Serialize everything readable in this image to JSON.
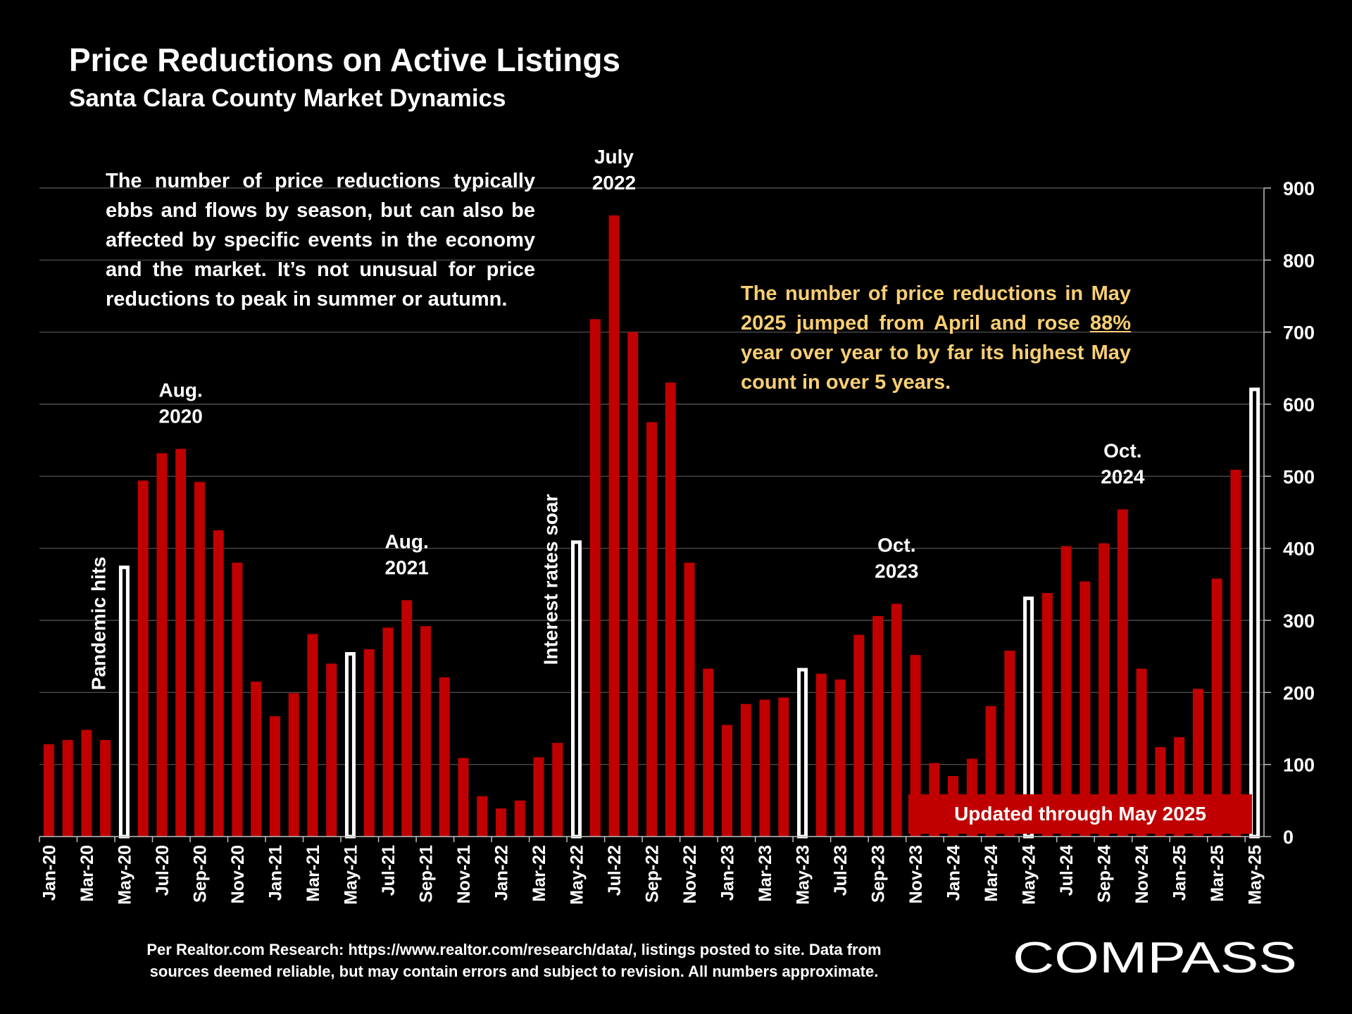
{
  "header": {
    "title": "Price Reductions on Active Listings",
    "subtitle": "Santa Clara County Market Dynamics"
  },
  "notes": {
    "left": "The number of price reductions typically ebbs and flows by season, but can also be affected by specific events in the economy and the market. It’s not unusual for price reductions to peak in summer or autumn.",
    "right_part1": "The number of price reductions in May 2025 jumped from April and rose",
    "right_highlight": "88%",
    "right_part2": "year over year to by far its highest May count in over 5 years."
  },
  "updated_label": "Updated through May 2025",
  "footer": {
    "line1": "Per Realtor.com Research:  https://www.realtor.com/research/data/, listings posted to site. Data from",
    "line2": "sources deemed reliable, but may contain errors and subject to revision. All numbers approximate."
  },
  "logo": {
    "text": "COMPASS"
  },
  "colors": {
    "bar": "#c00000",
    "highlight_bar": "#ffffff",
    "note_text": "#f9cf73",
    "grid": "#595959"
  },
  "chart_data": {
    "type": "bar",
    "title": "Price Reductions on Active Listings",
    "subtitle": "Santa Clara County Market Dynamics",
    "y_axis_position": "right",
    "ylim": [
      0,
      900
    ],
    "yticks": [
      0,
      100,
      200,
      300,
      400,
      500,
      600,
      700,
      800,
      900
    ],
    "grid": true,
    "x_tick_labels": [
      "Jan-20",
      "Mar-20",
      "May-20",
      "Jul-20",
      "Sep-20",
      "Nov-20",
      "Jan-21",
      "Mar-21",
      "May-21",
      "Jul-21",
      "Sep-21",
      "Nov-21",
      "Jan-22",
      "Mar-22",
      "May-22",
      "Jul-22",
      "Sep-22",
      "Nov-22",
      "Jan-23",
      "Mar-23",
      "May-23",
      "Jul-23",
      "Sep-23",
      "Nov-23",
      "Jan-24",
      "Mar-24",
      "May-24",
      "Jul-24",
      "Sep-24",
      "Nov-24",
      "Jan-25",
      "Mar-25",
      "May-25"
    ],
    "categories": [
      "Jan-20",
      "Feb-20",
      "Mar-20",
      "Apr-20",
      "May-20",
      "Jun-20",
      "Jul-20",
      "Aug-20",
      "Sep-20",
      "Oct-20",
      "Nov-20",
      "Dec-20",
      "Jan-21",
      "Feb-21",
      "Mar-21",
      "Apr-21",
      "May-21",
      "Jun-21",
      "Jul-21",
      "Aug-21",
      "Sep-21",
      "Oct-21",
      "Nov-21",
      "Dec-21",
      "Jan-22",
      "Feb-22",
      "Mar-22",
      "Apr-22",
      "May-22",
      "Jun-22",
      "Jul-22",
      "Aug-22",
      "Sep-22",
      "Oct-22",
      "Nov-22",
      "Dec-22",
      "Jan-23",
      "Feb-23",
      "Mar-23",
      "Apr-23",
      "May-23",
      "Jun-23",
      "Jul-23",
      "Aug-23",
      "Sep-23",
      "Oct-23",
      "Nov-23",
      "Dec-23",
      "Jan-24",
      "Feb-24",
      "Mar-24",
      "Apr-24",
      "May-24",
      "Jun-24",
      "Jul-24",
      "Aug-24",
      "Sep-24",
      "Oct-24",
      "Nov-24",
      "Dec-24",
      "Jan-25",
      "Feb-25",
      "Mar-25",
      "Apr-25",
      "May-25"
    ],
    "values": [
      128,
      134,
      148,
      134,
      376,
      494,
      532,
      538,
      492,
      425,
      380,
      215,
      167,
      199,
      281,
      240,
      256,
      260,
      290,
      328,
      292,
      221,
      109,
      56,
      39,
      50,
      110,
      130,
      411,
      718,
      862,
      700,
      575,
      630,
      380,
      233,
      155,
      184,
      190,
      193,
      234,
      226,
      218,
      280,
      306,
      323,
      252,
      102,
      84,
      108,
      181,
      258,
      333,
      338,
      403,
      354,
      407,
      454,
      233,
      124,
      138,
      205,
      358,
      509,
      623
    ],
    "highlighted": [
      "May-20",
      "May-21",
      "May-22",
      "May-23",
      "May-24",
      "May-25"
    ],
    "annotations": [
      {
        "text": "Pandemic hits",
        "category": "May-20",
        "orientation": "vertical"
      },
      {
        "text": "Aug. 2020",
        "category": "Aug-20"
      },
      {
        "text": "Aug. 2021",
        "category": "Aug-21"
      },
      {
        "text": "Interest rates soar",
        "category": "May-22",
        "orientation": "vertical"
      },
      {
        "text": "July 2022",
        "category": "Jul-22"
      },
      {
        "text": "Oct. 2023",
        "category": "Oct-23"
      },
      {
        "text": "Oct. 2024",
        "category": "Oct-24"
      }
    ]
  }
}
